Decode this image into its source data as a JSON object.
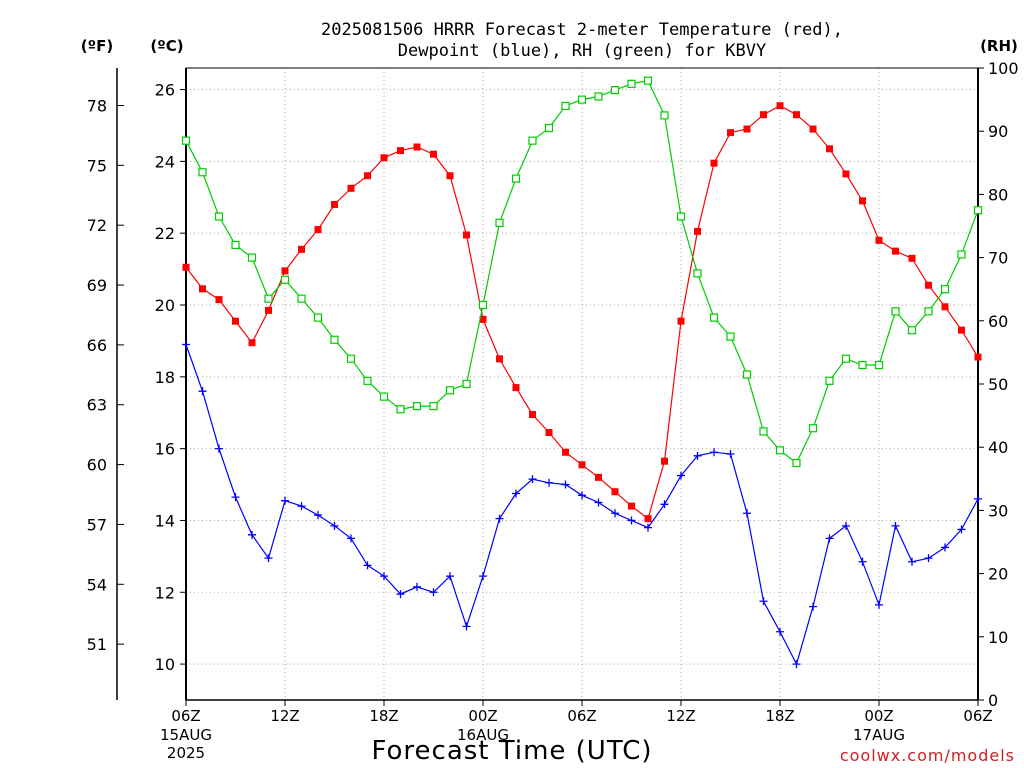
{
  "chart_data": {
    "type": "line",
    "title": "2025081506 HRRR Forecast 2-meter Temperature (red),",
    "subtitle": "Dewpoint (blue), RH (green) for KBVY",
    "units": {
      "left_f": "(ºF)",
      "left_c": "(ºC)",
      "right": "(RH)"
    },
    "xlabel": "Forecast Time (UTC)",
    "credit": "coolwx.com/models",
    "x_ticks": [
      {
        "hour": 0,
        "label": "06Z",
        "date1": "15AUG",
        "date2": "2025"
      },
      {
        "hour": 6,
        "label": "12Z"
      },
      {
        "hour": 12,
        "label": "18Z"
      },
      {
        "hour": 18,
        "label": "00Z",
        "date1": "16AUG"
      },
      {
        "hour": 24,
        "label": "06Z"
      },
      {
        "hour": 30,
        "label": "12Z"
      },
      {
        "hour": 36,
        "label": "18Z"
      },
      {
        "hour": 42,
        "label": "00Z",
        "date1": "17AUG"
      },
      {
        "hour": 48,
        "label": "06Z"
      }
    ],
    "xlim": [
      0,
      48
    ],
    "ylim_c": [
      9.0,
      26.6
    ],
    "yticks_c": [
      10,
      12,
      14,
      16,
      18,
      20,
      22,
      24,
      26
    ],
    "yticks_f": [
      51,
      54,
      57,
      60,
      63,
      66,
      69,
      72,
      75,
      78
    ],
    "ylim_rh": [
      0,
      100
    ],
    "yticks_rh": [
      0,
      10,
      20,
      30,
      40,
      50,
      60,
      70,
      80,
      90,
      100
    ],
    "grid": true,
    "colors": {
      "temperature": "#ff0000",
      "dewpoint": "#0000ff",
      "rh": "#00cc00"
    },
    "series": [
      {
        "name": "Temperature",
        "axis": "c",
        "marker": "filled-square",
        "values": [
          21.05,
          20.45,
          20.15,
          19.55,
          18.95,
          19.85,
          20.95,
          21.55,
          22.1,
          22.8,
          23.25,
          23.6,
          24.1,
          24.3,
          24.4,
          24.2,
          23.6,
          21.95,
          19.6,
          18.5,
          17.7,
          16.95,
          16.45,
          15.9,
          15.55,
          15.2,
          14.8,
          14.4,
          14.05,
          15.65,
          19.55,
          22.05,
          23.95,
          24.8,
          24.9,
          25.3,
          25.55,
          25.3,
          24.9,
          24.35,
          23.65,
          22.9,
          21.8,
          21.5,
          21.3,
          20.55,
          19.95,
          19.3,
          18.55
        ]
      },
      {
        "name": "Dewpoint",
        "axis": "c",
        "marker": "plus",
        "values": [
          18.9,
          17.6,
          16.0,
          14.65,
          13.6,
          12.95,
          14.55,
          14.4,
          14.15,
          13.85,
          13.5,
          12.75,
          12.45,
          11.95,
          12.15,
          12.0,
          12.45,
          11.05,
          12.45,
          14.05,
          14.75,
          15.15,
          15.05,
          15.0,
          14.7,
          14.5,
          14.2,
          14.0,
          13.8,
          14.45,
          15.25,
          15.8,
          15.9,
          15.85,
          14.2,
          11.75,
          10.9,
          10.0,
          11.6,
          13.5,
          13.85,
          12.85,
          11.65,
          13.85,
          12.85,
          12.95,
          13.25,
          13.75,
          14.6
        ]
      },
      {
        "name": "RH",
        "axis": "rh",
        "marker": "open-square",
        "values": [
          88.5,
          83.5,
          76.5,
          72.0,
          70.0,
          63.5,
          66.5,
          63.5,
          60.5,
          57.0,
          54.0,
          50.5,
          48.0,
          46.0,
          46.5,
          46.5,
          49.0,
          50.0,
          62.5,
          75.5,
          82.5,
          88.5,
          90.5,
          94.0,
          95.0,
          95.5,
          96.5,
          97.5,
          98.0,
          92.5,
          76.5,
          67.5,
          60.5,
          57.5,
          51.5,
          42.5,
          39.5,
          37.5,
          43.0,
          50.5,
          54.0,
          53.0,
          53.0,
          61.5,
          58.5,
          61.5,
          65.0,
          70.5,
          77.5
        ]
      }
    ]
  }
}
